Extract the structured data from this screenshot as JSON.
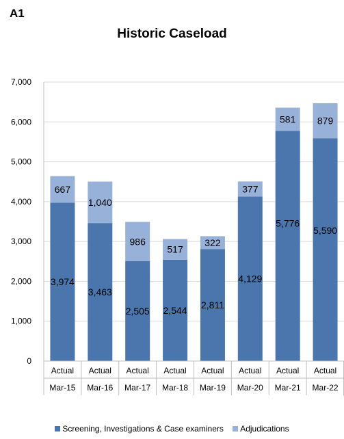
{
  "panel_label": "A1",
  "chart_data": {
    "type": "bar",
    "stacked": true,
    "title": "Historic Caseload",
    "xlabel": "",
    "ylabel": "",
    "ylim": [
      0,
      7000
    ],
    "y_ticks": [
      "0",
      "1,000",
      "2,000",
      "3,000",
      "4,000",
      "5,000",
      "6,000",
      "7,000"
    ],
    "y_tick_values": [
      0,
      1000,
      2000,
      3000,
      4000,
      5000,
      6000,
      7000
    ],
    "grid": true,
    "legend_position": "bottom",
    "categories": [
      {
        "top": "Actual",
        "bottom": "Mar-15"
      },
      {
        "top": "Actual",
        "bottom": "Mar-16"
      },
      {
        "top": "Actual",
        "bottom": "Mar-17"
      },
      {
        "top": "Actual",
        "bottom": "Mar-18"
      },
      {
        "top": "Actual",
        "bottom": "Mar-19"
      },
      {
        "top": "Actual",
        "bottom": "Mar-20"
      },
      {
        "top": "Actual",
        "bottom": "Mar-21"
      },
      {
        "top": "Actual",
        "bottom": "Mar-22"
      }
    ],
    "series": [
      {
        "name": "Screening, Investigations & Case examiners",
        "color": "#4a76ad",
        "values": [
          3974,
          3463,
          2505,
          2544,
          2811,
          4129,
          5776,
          5590
        ],
        "labels": [
          "3,974",
          "3,463",
          "2,505",
          "2,544",
          "2,811",
          "4,129",
          "5,776",
          "5,590"
        ]
      },
      {
        "name": "Adjudications",
        "color": "#98b1d8",
        "values": [
          667,
          1040,
          986,
          517,
          322,
          377,
          581,
          879
        ],
        "labels": [
          "667",
          "1,040",
          "986",
          "517",
          "322",
          "377",
          "581",
          "879"
        ]
      }
    ]
  }
}
